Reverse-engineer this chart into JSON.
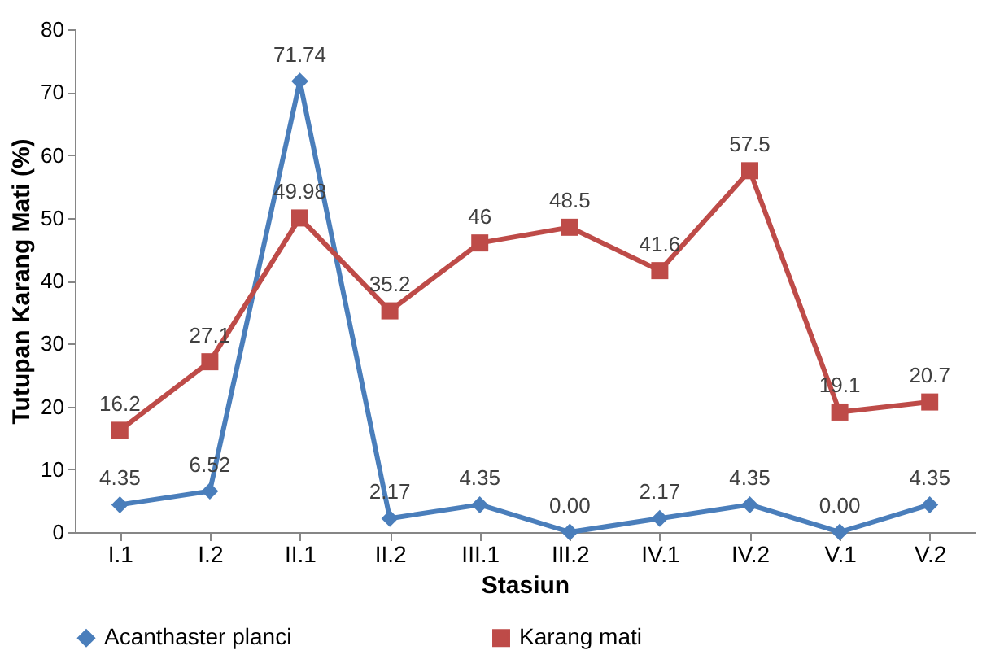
{
  "chart_data": {
    "type": "line",
    "xlabel": "Stasiun",
    "ylabel": "Tutupan Karang Mati (%)",
    "categories": [
      "I.1",
      "I.2",
      "II.1",
      "II.2",
      "III.1",
      "III.2",
      "IV.1",
      "IV.2",
      "V.1",
      "V.2"
    ],
    "ylim": [
      0,
      80
    ],
    "yticks": [
      0,
      10,
      20,
      30,
      40,
      50,
      60,
      70,
      80
    ],
    "grid": false,
    "legend": "bottom",
    "line_style": "solid",
    "series": [
      {
        "name": "Acanthaster planci",
        "color": "#4a7ebb",
        "marker": "diamond",
        "values": [
          4.35,
          6.52,
          71.74,
          2.17,
          4.35,
          0.0,
          2.17,
          4.35,
          0.0,
          4.35
        ],
        "value_labels": [
          "4.35",
          "6.52",
          "71.74",
          "2.17",
          "4.35",
          "0.00",
          "2.17",
          "4.35",
          "0.00",
          "4.35"
        ]
      },
      {
        "name": "Karang mati",
        "color": "#be4b48",
        "marker": "square",
        "values": [
          16.2,
          27.1,
          49.98,
          35.2,
          46,
          48.5,
          41.6,
          57.5,
          19.1,
          20.7
        ],
        "value_labels": [
          "16.2",
          "27.1",
          "49.98",
          "35.2",
          "46",
          "48.5",
          "41.6",
          "57.5",
          "19.1",
          "20.7"
        ]
      }
    ]
  }
}
